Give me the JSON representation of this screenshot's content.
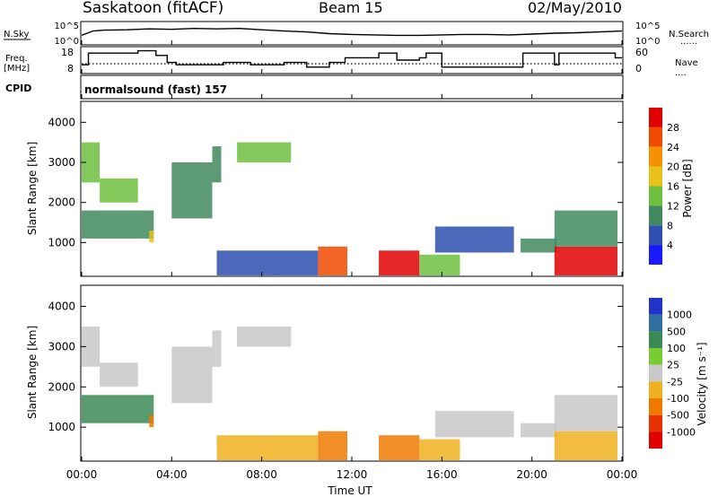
{
  "header": {
    "station": "Saskatoon (fitACF)",
    "beam": "Beam 15",
    "date": "02/May/2010"
  },
  "side_labels": {
    "nsky": "N.Sky",
    "freq_line1": "Freq.",
    "freq_line2": "[MHz]",
    "cpid": "CPID",
    "nsearch": "N.Search",
    "nave": "Nave",
    "solid_mark": "____",
    "dotted_mark": "......",
    "dotted_mark_short": "...."
  },
  "noise_axis": {
    "top": "10^5",
    "bottom": "10^0"
  },
  "freq_axis": {
    "left_ticks": [
      "18",
      "8"
    ],
    "right_ticks": [
      "60",
      "0"
    ]
  },
  "cpid_text": "normalsound (fast) 157",
  "x_axis": {
    "ticks": [
      "00:00",
      "04:00",
      "08:00",
      "12:00",
      "16:00",
      "20:00",
      "00:00"
    ],
    "label": "Time UT"
  },
  "range_axis": {
    "label": "Slant Range [km]",
    "ticks": [
      "1000",
      "2000",
      "3000",
      "4000"
    ]
  },
  "power_scale": {
    "label": "Power [dB]",
    "ticks": [
      "4",
      "8",
      "12",
      "16",
      "20",
      "24",
      "28"
    ],
    "colors": [
      "#1a1aff",
      "#2e4fb0",
      "#3f8a5e",
      "#6fbf3f",
      "#e8c21a",
      "#f59000",
      "#f04a00",
      "#e00000"
    ]
  },
  "velocity_scale": {
    "label": "Velocity [m s⁻¹]",
    "ticks": [
      "1000",
      "500",
      "100",
      "25",
      "-25",
      "-100",
      "-500",
      "-1000"
    ],
    "colors": [
      "#2233cc",
      "#2e6fa0",
      "#3a8a55",
      "#77cc33",
      "#c8c8c8",
      "#f0b020",
      "#f07a00",
      "#e83000",
      "#e00000"
    ]
  },
  "chart_data": {
    "type": "heatmap",
    "title": "Saskatoon (fitACF)",
    "xlabel": "Time UT",
    "ylabel": "Slant Range [km]",
    "xlim": [
      0,
      24
    ],
    "ylim": [
      180,
      4500
    ],
    "panels": [
      "Power [dB]",
      "Velocity [m s⁻¹]"
    ],
    "echo_regions": [
      {
        "t0": 0.0,
        "t1": 0.8,
        "r0": 2500,
        "r1": 3500,
        "power": 14,
        "velocity": 10
      },
      {
        "t0": 0.0,
        "t1": 3.2,
        "r0": 1100,
        "r1": 1800,
        "power": 10,
        "velocity": 150
      },
      {
        "t0": 0.8,
        "t1": 2.5,
        "r0": 2000,
        "r1": 2600,
        "power": 12,
        "velocity": 10
      },
      {
        "t0": 3.0,
        "t1": 3.2,
        "r0": 1000,
        "r1": 1300,
        "power": 18,
        "velocity": -110
      },
      {
        "t0": 4.0,
        "t1": 5.8,
        "r0": 1600,
        "r1": 3000,
        "power": 10,
        "velocity": 5
      },
      {
        "t0": 5.8,
        "t1": 6.2,
        "r0": 2500,
        "r1": 3400,
        "power": 8,
        "velocity": 5
      },
      {
        "t0": 6.9,
        "t1": 9.3,
        "r0": 3000,
        "r1": 3500,
        "power": 14,
        "velocity": 5
      },
      {
        "t0": 6.0,
        "t1": 10.5,
        "r0": 180,
        "r1": 800,
        "power": 6,
        "velocity": -40
      },
      {
        "t0": 10.5,
        "t1": 11.8,
        "r0": 180,
        "r1": 900,
        "power": 27,
        "velocity": -200
      },
      {
        "t0": 13.2,
        "t1": 15.0,
        "r0": 180,
        "r1": 800,
        "power": 28,
        "velocity": -150
      },
      {
        "t0": 15.0,
        "t1": 16.8,
        "r0": 180,
        "r1": 700,
        "power": 15,
        "velocity": -60
      },
      {
        "t0": 15.7,
        "t1": 19.2,
        "r0": 750,
        "r1": 1400,
        "power": 7,
        "velocity": 15
      },
      {
        "t0": 19.5,
        "t1": 21.1,
        "r0": 750,
        "r1": 1100,
        "power": 8,
        "velocity": 5
      },
      {
        "t0": 21.0,
        "t1": 23.8,
        "r0": 180,
        "r1": 900,
        "power": 29,
        "velocity": -100
      },
      {
        "t0": 21.0,
        "t1": 23.8,
        "r0": 900,
        "r1": 1800,
        "power": 10,
        "velocity": 5
      }
    ],
    "noise_series": {
      "name": "N.Sky",
      "x": [
        0,
        0.5,
        1,
        2,
        3,
        4,
        5,
        6,
        7,
        8,
        9,
        10,
        11,
        12,
        13,
        14,
        15,
        16,
        17,
        18,
        19,
        20,
        21,
        22,
        23,
        24
      ],
      "values": [
        2,
        3,
        3.2,
        3.3,
        3.5,
        3.4,
        3.6,
        3.5,
        3.6,
        3.3,
        3,
        2.8,
        2.4,
        2.2,
        2.1,
        2,
        2,
        2.1,
        2.2,
        2.2,
        2.1,
        2.3,
        2.5,
        2.6,
        2.8,
        3
      ]
    },
    "frequency_series": {
      "name": "Freq. [MHz]",
      "x": [
        0,
        0.3,
        1,
        2.5,
        3.3,
        3.8,
        4.2,
        5,
        6,
        6.3,
        7.5,
        8.5,
        9,
        10,
        11,
        11.7,
        13.2,
        14,
        15,
        15.3,
        16,
        18.5,
        19,
        19.6,
        20,
        21,
        21.2,
        22,
        22.3,
        23,
        23.7,
        24
      ],
      "values": [
        11,
        16,
        16,
        17,
        15,
        12,
        11,
        11,
        11,
        12,
        11,
        11,
        12,
        10,
        12,
        14,
        16,
        13,
        14,
        16,
        10,
        10,
        10,
        16,
        16,
        11,
        16,
        16,
        16,
        16,
        14,
        14
      ]
    }
  }
}
